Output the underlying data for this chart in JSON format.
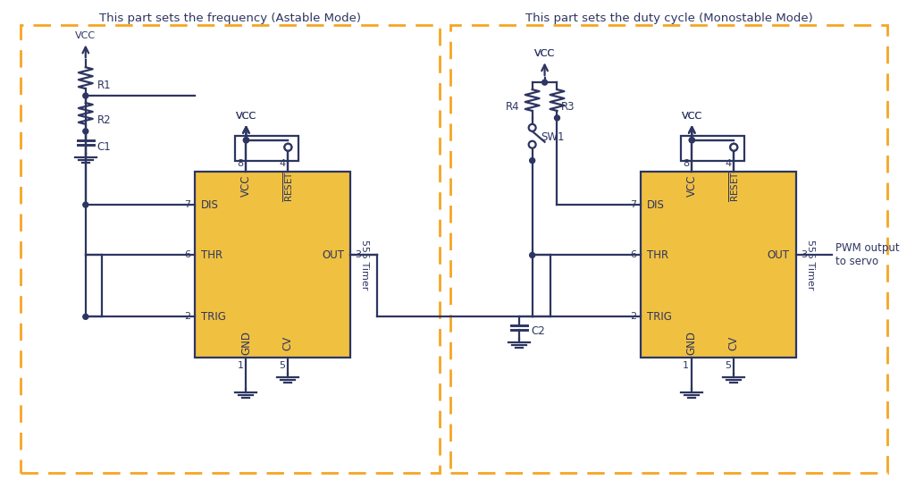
{
  "bg_color": "#ffffff",
  "line_color": "#2d3561",
  "timer_fill": "#f0c040",
  "timer_edge": "#2d3561",
  "dashed_box_color": "#f5a623",
  "text_color": "#2d3561",
  "title1": "This part sets the frequency (Astable Mode)",
  "title2": "This part sets the duty cycle (Monostable Mode)",
  "pwm_label": "PWM output\nto servo"
}
